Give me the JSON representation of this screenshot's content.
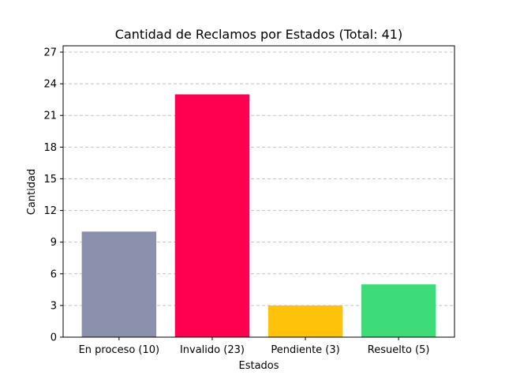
{
  "chart_data": {
    "type": "bar",
    "title": "Cantidad de Reclamos por Estados (Total: 41)",
    "xlabel": "Estados",
    "ylabel": "Cantidad",
    "categories": [
      "En proceso (10)",
      "Invalido (23)",
      "Pendiente (3)",
      "Resuelto (5)"
    ],
    "values": [
      10,
      23,
      3,
      5
    ],
    "colors": [
      "#8b91ad",
      "#ff0050",
      "#ffc20a",
      "#3ddc79"
    ],
    "ylim": [
      0,
      27.6
    ],
    "yticks": [
      0,
      3,
      6,
      9,
      12,
      15,
      18,
      21,
      24,
      27
    ],
    "grid": "y-dashed",
    "legend": "none"
  }
}
